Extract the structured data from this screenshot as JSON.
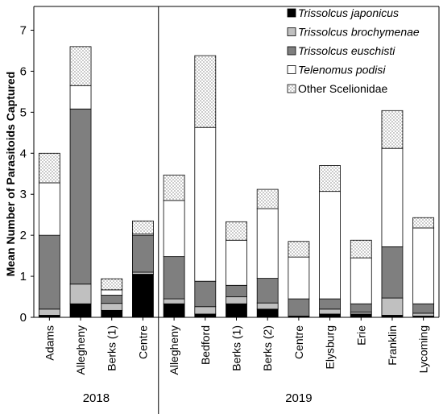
{
  "chart_data": {
    "type": "bar",
    "stacked": true,
    "ylabel": "Mean Number of Parasitoids Captured",
    "xlabel": "",
    "ylim": [
      0,
      7
    ],
    "yticks": [
      0,
      1,
      2,
      3,
      4,
      5,
      6,
      7
    ],
    "grid": false,
    "legend_position": "top-right",
    "groups": [
      {
        "label": "2018",
        "categories": [
          "Adams",
          "Allegheny",
          "Berks (1)",
          "Centre"
        ]
      },
      {
        "label": "2019",
        "categories": [
          "Allegheny",
          "Bedford",
          "Berks (1)",
          "Berks (2)",
          "Centre",
          "Elysburg",
          "Erie",
          "Franklin",
          "Lycoming"
        ]
      }
    ],
    "categories": [
      "Adams",
      "Allegheny",
      "Berks (1)",
      "Centre",
      "Allegheny",
      "Bedford",
      "Berks (1)",
      "Berks (2)",
      "Centre",
      "Elysburg",
      "Erie",
      "Franklin",
      "Lycoming"
    ],
    "series": [
      {
        "name": "Trissolcus japonicus",
        "italic": true,
        "fill": "#000000",
        "values": [
          0.05,
          0.33,
          0.17,
          1.05,
          0.33,
          0.08,
          0.33,
          0.2,
          0.03,
          0.08,
          0.08,
          0.05,
          0.03
        ]
      },
      {
        "name": "Trissolcus brochymenae",
        "italic": true,
        "fill": "#c0c0c0",
        "values": [
          0.15,
          0.48,
          0.17,
          0.05,
          0.12,
          0.18,
          0.17,
          0.15,
          0.0,
          0.12,
          0.05,
          0.42,
          0.07
        ]
      },
      {
        "name": "Trissolcus euschisti",
        "italic": true,
        "fill": "#7f7f7f",
        "values": [
          1.8,
          4.27,
          0.2,
          0.9,
          1.03,
          0.62,
          0.28,
          0.6,
          0.42,
          0.25,
          0.2,
          1.25,
          0.23
        ]
      },
      {
        "name": "Telenomus podisi",
        "italic": true,
        "fill": "#ffffff",
        "values": [
          1.28,
          0.57,
          0.13,
          0.03,
          1.37,
          3.75,
          1.1,
          1.7,
          1.02,
          2.62,
          1.12,
          2.4,
          1.85
        ]
      },
      {
        "name": "Other Scelionidae",
        "italic": false,
        "fill": "dots",
        "values": [
          0.72,
          0.95,
          0.27,
          0.32,
          0.62,
          1.75,
          0.45,
          0.47,
          0.38,
          0.63,
          0.43,
          0.92,
          0.25
        ]
      }
    ]
  }
}
